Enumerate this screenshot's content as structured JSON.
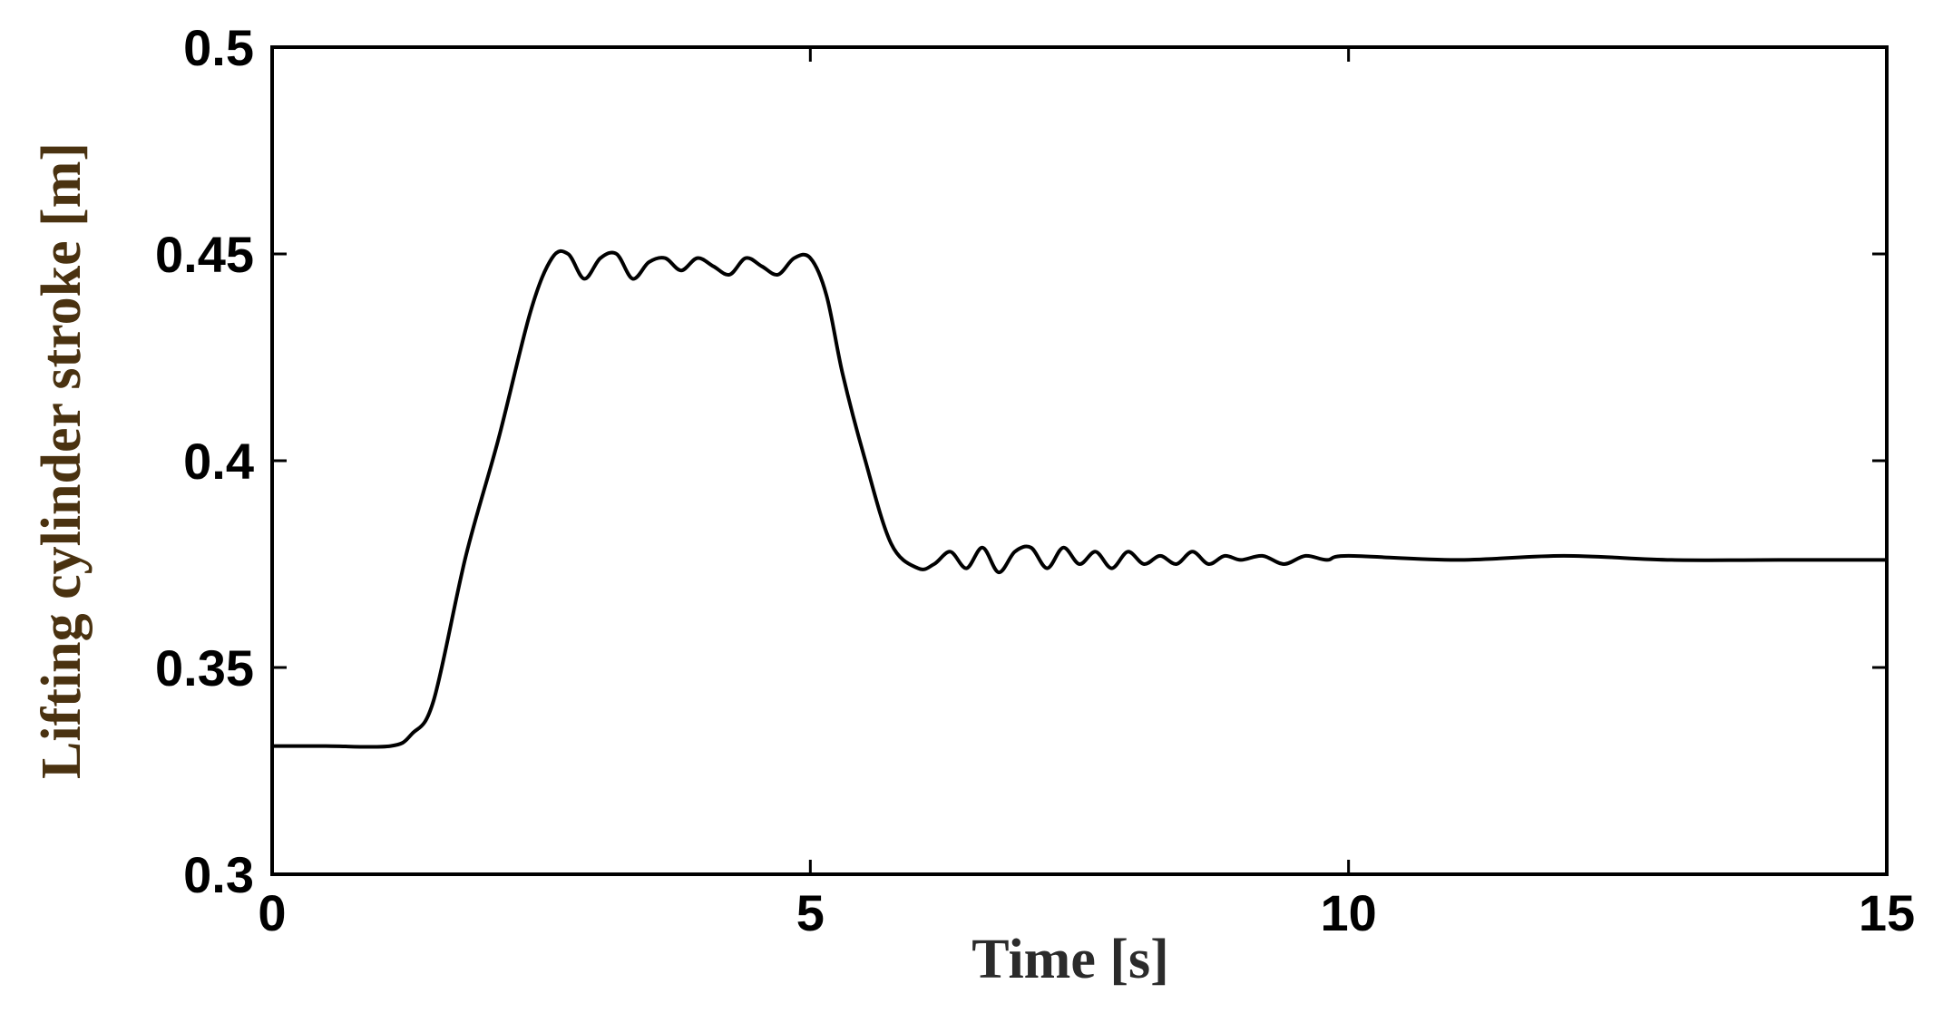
{
  "chart_data": {
    "type": "line",
    "title": "",
    "xlabel": "Time [s]",
    "ylabel": "Lifting cylinder stroke [m]",
    "xlim": [
      0,
      15
    ],
    "ylim": [
      0.3,
      0.5
    ],
    "xticks": [
      0,
      5,
      10,
      15
    ],
    "xtick_labels": [
      "0",
      "5",
      "10",
      "15"
    ],
    "yticks": [
      0.3,
      0.35,
      0.4,
      0.45,
      0.5
    ],
    "ytick_labels": [
      "0.3",
      "0.35",
      "0.4",
      "0.45",
      "0.5"
    ],
    "grid": false,
    "legend": "none",
    "colors": {
      "line": "#000000",
      "xlabel": "#2b2b2b",
      "ylabel": "#4a3210",
      "axes": "#000000"
    },
    "series": [
      {
        "x": [
          0,
          0.5,
          1.1,
          1.3,
          1.5,
          1.8,
          2.1,
          2.4,
          2.6,
          2.75,
          2.9,
          3.05,
          3.2,
          3.35,
          3.5,
          3.65,
          3.8,
          3.95,
          4.1,
          4.25,
          4.4,
          4.55,
          4.7,
          4.85,
          5.0,
          5.15,
          5.3,
          5.5,
          5.75,
          6.0,
          6.15,
          6.3,
          6.45,
          6.6,
          6.75,
          6.9,
          7.05,
          7.2,
          7.35,
          7.5,
          7.65,
          7.8,
          7.95,
          8.1,
          8.25,
          8.4,
          8.55,
          8.7,
          8.85,
          9.0,
          9.2,
          9.4,
          9.6,
          9.8,
          10.0,
          11.0,
          12.0,
          13.0,
          14.0,
          15.0
        ],
        "y": [
          0.331,
          0.331,
          0.331,
          0.334,
          0.342,
          0.377,
          0.405,
          0.436,
          0.449,
          0.45,
          0.444,
          0.449,
          0.45,
          0.444,
          0.448,
          0.449,
          0.446,
          0.449,
          0.447,
          0.445,
          0.449,
          0.447,
          0.445,
          0.449,
          0.449,
          0.44,
          0.421,
          0.401,
          0.38,
          0.374,
          0.375,
          0.378,
          0.374,
          0.379,
          0.373,
          0.378,
          0.379,
          0.374,
          0.379,
          0.375,
          0.378,
          0.374,
          0.378,
          0.375,
          0.377,
          0.375,
          0.378,
          0.375,
          0.377,
          0.376,
          0.377,
          0.375,
          0.377,
          0.376,
          0.377,
          0.376,
          0.377,
          0.376,
          0.376,
          0.376
        ]
      }
    ]
  }
}
